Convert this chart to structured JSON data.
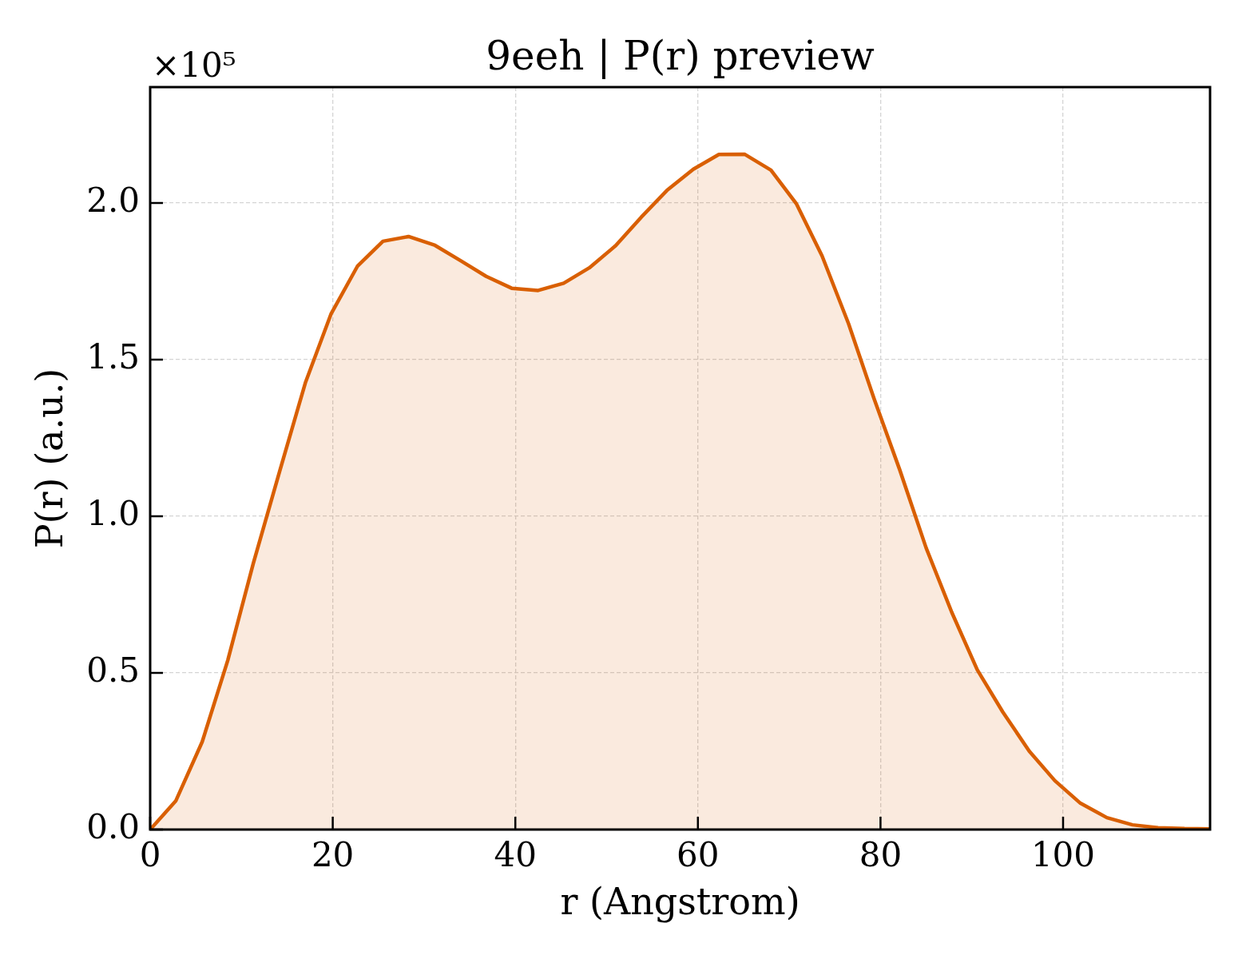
{
  "chart_data": {
    "type": "area",
    "title": "9eeh | P(r) preview",
    "xlabel": "r (Angstrom)",
    "ylabel": "P(r) (a.u.)",
    "annotations": [
      "×10⁵"
    ],
    "x": [
      0,
      2.8,
      5.7,
      8.5,
      11.3,
      14.2,
      17.0,
      19.8,
      22.7,
      25.5,
      28.3,
      31.2,
      34.0,
      36.8,
      39.6,
      42.5,
      45.3,
      48.1,
      51.0,
      53.8,
      56.6,
      59.5,
      62.3,
      65.1,
      68.0,
      70.8,
      73.6,
      76.5,
      79.3,
      82.1,
      85.0,
      87.8,
      90.6,
      93.4,
      96.3,
      99.1,
      101.9,
      104.8,
      107.6,
      110.4,
      113.3,
      116.1
    ],
    "series": [
      {
        "color": "#d95f02",
        "values": [
          0,
          0.091,
          0.28,
          0.54,
          0.85,
          1.145,
          1.426,
          1.645,
          1.798,
          1.878,
          1.893,
          1.865,
          1.816,
          1.766,
          1.728,
          1.721,
          1.744,
          1.793,
          1.864,
          1.955,
          2.04,
          2.108,
          2.155,
          2.156,
          2.105,
          1.997,
          1.831,
          1.615,
          1.375,
          1.149,
          0.899,
          0.694,
          0.51,
          0.375,
          0.25,
          0.156,
          0.084,
          0.038,
          0.015,
          0.006,
          0.003,
          0.002
        ]
      }
    ],
    "xlim": [
      0,
      116.1
    ],
    "ylim": [
      0,
      2.37
    ],
    "xticks": [
      0,
      20,
      40,
      60,
      80,
      100
    ],
    "yticks": [
      {
        "value": 0,
        "label": "0.0"
      },
      0.5,
      {
        "value": 1,
        "label": "1.0"
      },
      1.5,
      {
        "value": 2,
        "label": "2.0"
      }
    ],
    "grid": true
  }
}
